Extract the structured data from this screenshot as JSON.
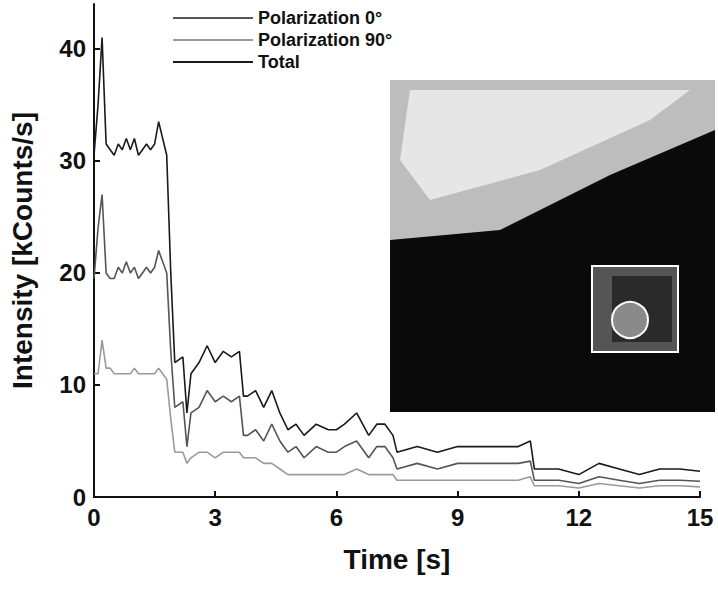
{
  "chart_data": {
    "type": "line",
    "x_label": "Time [s]",
    "y_label": "Intensity [kCounts/s]",
    "xlim": [
      0,
      15
    ],
    "xticks": [
      0,
      3,
      6,
      9,
      12,
      15
    ],
    "ylim": [
      0,
      44
    ],
    "yticks": [
      0,
      10,
      20,
      30,
      40
    ],
    "grid": false,
    "legend": "top-left",
    "x": [
      0.0,
      0.1,
      0.2,
      0.3,
      0.4,
      0.5,
      0.6,
      0.7,
      0.8,
      0.9,
      1.0,
      1.1,
      1.2,
      1.3,
      1.4,
      1.5,
      1.6,
      1.7,
      1.8,
      1.9,
      2.0,
      2.2,
      2.3,
      2.4,
      2.6,
      2.8,
      3.0,
      3.2,
      3.4,
      3.6,
      3.7,
      3.8,
      4.0,
      4.2,
      4.4,
      4.6,
      4.8,
      5.0,
      5.2,
      5.5,
      5.8,
      6.0,
      6.2,
      6.5,
      6.8,
      7.0,
      7.2,
      7.4,
      7.5,
      8.0,
      8.5,
      9.0,
      9.5,
      10.0,
      10.5,
      10.8,
      10.9,
      11.5,
      12.0,
      12.5,
      13.0,
      13.5,
      14.0,
      14.5,
      15.0
    ],
    "series": [
      {
        "name": "Polarization 0°",
        "color": "#555555",
        "line_style": "solid",
        "values": [
          19.5,
          24,
          27,
          20,
          19.5,
          19.5,
          20.5,
          20,
          21,
          20,
          20.5,
          19.5,
          20,
          20.5,
          20,
          20.5,
          22,
          21,
          20,
          13,
          8,
          8.5,
          4.5,
          7.5,
          8,
          9.5,
          8.5,
          9,
          8.5,
          9,
          5.5,
          5.5,
          6,
          5,
          6.5,
          5,
          4,
          4.5,
          3.5,
          4.5,
          4,
          4,
          4.5,
          5,
          3.5,
          4.5,
          4.5,
          3.5,
          2.5,
          3,
          2.5,
          3,
          3,
          3,
          3,
          3.2,
          1.5,
          1.5,
          1.2,
          1.8,
          1.5,
          1.2,
          1.5,
          1.5,
          1.4
        ]
      },
      {
        "name": "Polarization 90°",
        "color": "#9a9a9a",
        "line_style": "solid",
        "values": [
          11,
          11,
          14,
          11.5,
          11.5,
          11,
          11,
          11,
          11,
          11,
          11.5,
          11,
          11,
          11,
          11,
          11,
          11.5,
          11,
          10.5,
          7,
          4,
          4,
          3,
          3.5,
          4,
          4,
          3.5,
          4,
          4,
          4,
          3.5,
          3.5,
          3.5,
          3,
          3,
          2.5,
          2,
          2,
          2,
          2,
          2,
          2,
          2,
          2.5,
          2,
          2,
          2,
          2,
          1.5,
          1.5,
          1.5,
          1.5,
          1.5,
          1.5,
          1.5,
          1.8,
          1,
          1,
          0.8,
          1.2,
          1,
          0.8,
          1,
          1,
          0.9
        ]
      },
      {
        "name": "Total",
        "color": "#1a1a1a",
        "line_style": "solid",
        "values": [
          30.5,
          35,
          41,
          31.5,
          31,
          30.5,
          31.5,
          31,
          32,
          31,
          32,
          30.5,
          31,
          31.5,
          31,
          31.5,
          33.5,
          32,
          30.5,
          20,
          12,
          12.5,
          7.5,
          11,
          12,
          13.5,
          12,
          13,
          12.5,
          13,
          9,
          9,
          9.5,
          8,
          9.5,
          7.5,
          6,
          6.5,
          5.5,
          6.5,
          6,
          6,
          6.5,
          7.5,
          5.5,
          6.5,
          6.5,
          5.5,
          4,
          4.5,
          4,
          4.5,
          4.5,
          4.5,
          4.5,
          5,
          2.5,
          2.5,
          2,
          3,
          2.5,
          2,
          2.5,
          2.5,
          2.3
        ]
      }
    ]
  }
}
